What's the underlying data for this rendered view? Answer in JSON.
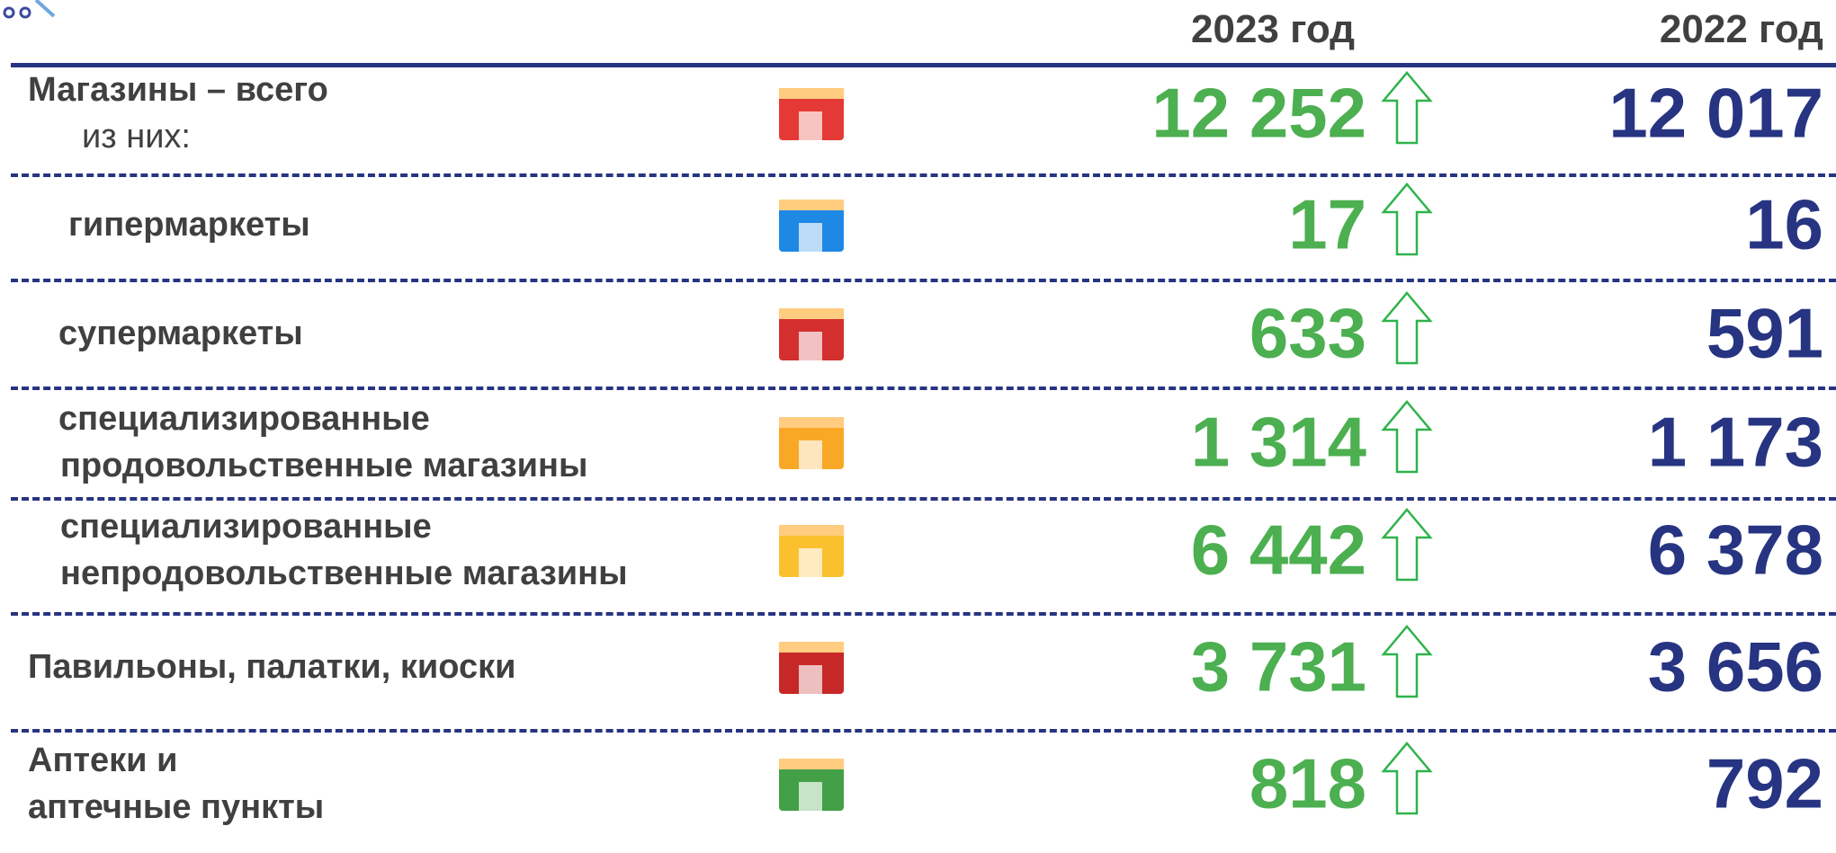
{
  "header": {
    "columns": [
      "2023 год",
      "2022 год"
    ]
  },
  "table": {
    "rows": [
      {
        "label": [
          "Магазины – всего",
          "из них:"
        ],
        "current": "12 252",
        "previous": "12 017"
      },
      {
        "label": [
          "гипермаркеты"
        ],
        "current": "17",
        "previous": "16"
      },
      {
        "label": [
          "супермаркеты"
        ],
        "current": "633",
        "previous": "591"
      },
      {
        "label": [
          "специализированные",
          "продовольственные магазины"
        ],
        "current": "1 314",
        "previous": "1 173"
      },
      {
        "label": [
          "специализированные",
          "непродовольственные магазины"
        ],
        "current": "6 442",
        "previous": "6 378"
      },
      {
        "label": [
          "Павильоны, палатки, киоски"
        ],
        "current": "3 731",
        "previous": "3 656"
      },
      {
        "label": [
          "Аптеки и",
          "аптечные пункты"
        ],
        "current": "818",
        "previous": "792"
      }
    ]
  }
}
